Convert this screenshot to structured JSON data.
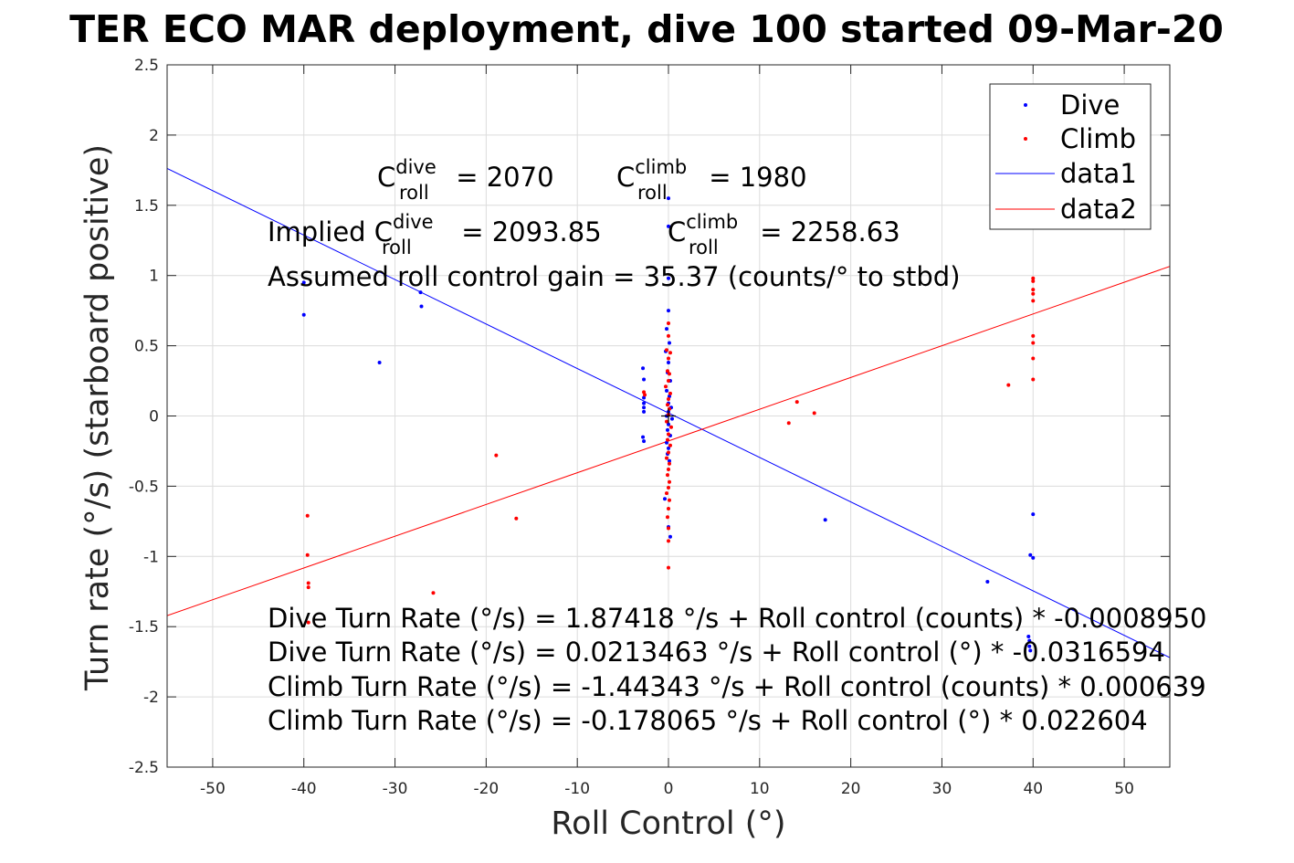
{
  "title": "TER ECO MAR deployment, dive 100 started 09-Mar-20",
  "chart_data": {
    "type": "scatter",
    "title": "TER ECO MAR deployment, dive 100 started 09-Mar-20",
    "xlabel": "Roll Control (°)",
    "ylabel": "Turn rate (°/s) (starboard positive)",
    "xlim": [
      -55,
      55
    ],
    "ylim": [
      -2.5,
      2.5
    ],
    "x_ticks": [
      -50,
      -40,
      -30,
      -20,
      -10,
      0,
      10,
      20,
      30,
      40,
      50
    ],
    "y_ticks": [
      -2.5,
      -2,
      -1.5,
      -1,
      -0.5,
      0,
      0.5,
      1,
      1.5,
      2,
      2.5
    ],
    "x_tick_labels": [
      "-50",
      "-40",
      "-30",
      "-20",
      "-10",
      "0",
      "10",
      "20",
      "30",
      "40",
      "50"
    ],
    "y_tick_labels": [
      "-2.5",
      "-2",
      "-1.5",
      "-1",
      "-0.5",
      "0",
      "0.5",
      "1",
      "1.5",
      "2",
      "2.5"
    ],
    "grid": true,
    "legend_position": "top-right",
    "legend": [
      "Dive",
      "Climb",
      "data1",
      "data2"
    ],
    "series": [
      {
        "name": "Dive",
        "kind": "points",
        "color": "#0000ff",
        "points": [
          [
            -40,
            0.95
          ],
          [
            -40,
            0.72
          ],
          [
            -31.7,
            0.38
          ],
          [
            -27.2,
            0.88
          ],
          [
            -27.1,
            0.78
          ],
          [
            -2.8,
            0.34
          ],
          [
            -2.7,
            0.26
          ],
          [
            -2.7,
            0.13
          ],
          [
            -2.7,
            0.09
          ],
          [
            -2.7,
            0.06
          ],
          [
            -2.7,
            0.03
          ],
          [
            -2.8,
            -0.15
          ],
          [
            -2.7,
            -0.18
          ],
          [
            0,
            1.55
          ],
          [
            0,
            1.35
          ],
          [
            0,
            0.98
          ],
          [
            0,
            0.75
          ],
          [
            -0.2,
            0.62
          ],
          [
            0.1,
            0.52
          ],
          [
            -0.3,
            0.46
          ],
          [
            0,
            0.38
          ],
          [
            -0.1,
            0.31
          ],
          [
            0.2,
            0.25
          ],
          [
            -0.2,
            0.18
          ],
          [
            0.1,
            0.14
          ],
          [
            0,
            0.09
          ],
          [
            0.3,
            0.06
          ],
          [
            0,
            0.03
          ],
          [
            -0.2,
            0
          ],
          [
            0.4,
            -0.02
          ],
          [
            0,
            -0.06
          ],
          [
            -0.1,
            -0.1
          ],
          [
            0.2,
            -0.14
          ],
          [
            -0.2,
            -0.19
          ],
          [
            0,
            -0.23
          ],
          [
            -0.1,
            -0.27
          ],
          [
            0.1,
            -0.32
          ],
          [
            -0.4,
            -0.59
          ],
          [
            0,
            -0.79
          ],
          [
            0.2,
            -0.86
          ],
          [
            17.2,
            -0.74
          ],
          [
            35,
            -1.18
          ],
          [
            39.7,
            -0.99
          ],
          [
            40,
            -1.01
          ],
          [
            40,
            -0.7
          ],
          [
            39.5,
            -1.57
          ],
          [
            39.6,
            -1.6
          ],
          [
            39.6,
            -1.64
          ],
          [
            39.7,
            -1.67
          ]
        ]
      },
      {
        "name": "Climb",
        "kind": "points",
        "color": "#ff0000",
        "points": [
          [
            -39.6,
            -0.71
          ],
          [
            -39.6,
            -0.99
          ],
          [
            -39.5,
            -1.19
          ],
          [
            -39.5,
            -1.22
          ],
          [
            -39.5,
            -1.47
          ],
          [
            -25.8,
            -1.26
          ],
          [
            -18.9,
            -0.28
          ],
          [
            -16.7,
            -0.73
          ],
          [
            -2.7,
            0.17
          ],
          [
            -2.6,
            0.15
          ],
          [
            0,
            0.66
          ],
          [
            0,
            0.57
          ],
          [
            -0.2,
            0.47
          ],
          [
            0.2,
            0.45
          ],
          [
            0,
            0.41
          ],
          [
            -0.1,
            0.32
          ],
          [
            0.1,
            0.3
          ],
          [
            0,
            0.25
          ],
          [
            -0.3,
            0.21
          ],
          [
            0.2,
            0.16
          ],
          [
            0,
            0.12
          ],
          [
            -0.1,
            0.08
          ],
          [
            0.1,
            0.05
          ],
          [
            0,
            0.01
          ],
          [
            -0.2,
            -0.04
          ],
          [
            0.3,
            -0.08
          ],
          [
            0,
            -0.13
          ],
          [
            -0.1,
            -0.17
          ],
          [
            0.2,
            -0.21
          ],
          [
            0,
            -0.26
          ],
          [
            -0.2,
            -0.3
          ],
          [
            0.1,
            -0.34
          ],
          [
            0,
            -0.38
          ],
          [
            -0.1,
            -0.42
          ],
          [
            0.1,
            -0.47
          ],
          [
            0,
            -0.51
          ],
          [
            -0.2,
            -0.55
          ],
          [
            0.1,
            -0.6
          ],
          [
            0,
            -0.66
          ],
          [
            -0.1,
            -0.72
          ],
          [
            0,
            -0.8
          ],
          [
            0,
            -0.89
          ],
          [
            0,
            -1.08
          ],
          [
            13.2,
            -0.05
          ],
          [
            14.1,
            0.1
          ],
          [
            16,
            0.02
          ],
          [
            37.3,
            0.22
          ],
          [
            40,
            0.98
          ],
          [
            40,
            0.96
          ],
          [
            40,
            0.9
          ],
          [
            40,
            0.87
          ],
          [
            40,
            0.82
          ],
          [
            40,
            0.57
          ],
          [
            40,
            0.52
          ],
          [
            40,
            0.41
          ],
          [
            40,
            0.26
          ]
        ]
      },
      {
        "name": "data1",
        "kind": "line",
        "color": "#0000ff",
        "slope": -0.0316594,
        "intercept": 0.0213463,
        "x": [
          -55,
          55
        ]
      },
      {
        "name": "data2",
        "kind": "line",
        "color": "#ff0000",
        "slope": 0.022604,
        "intercept": -0.178065,
        "x": [
          -55,
          55
        ]
      }
    ],
    "annotations": {
      "c_roll_dive": {
        "base": "C",
        "sub": "roll",
        "sup": "dive",
        "value": " = 2070"
      },
      "c_roll_climb": {
        "base": "C",
        "sub": "roll",
        "sup": "climb",
        "value": " = 1980"
      },
      "implied_dive": {
        "prefix": "Implied C",
        "sub": "roll",
        "sup": "dive",
        "value": " = 2093.85"
      },
      "implied_climb": {
        "base": "C",
        "sub": "roll",
        "sup": "climb",
        "value": " = 2258.63"
      },
      "gain": "Assumed roll control gain = 35.37 (counts/° to stbd)",
      "fit_lines": [
        "Dive Turn Rate (°/s) = 1.87418 °/s + Roll control (counts) * -0.0008950",
        "Dive Turn Rate (°/s) = 0.0213463 °/s + Roll control (°) * -0.0316594",
        "Climb Turn Rate (°/s) = -1.44343 °/s + Roll control (counts) * 0.000639",
        "Climb Turn Rate (°/s) = -0.178065 °/s + Roll control (°) * 0.022604"
      ]
    }
  }
}
